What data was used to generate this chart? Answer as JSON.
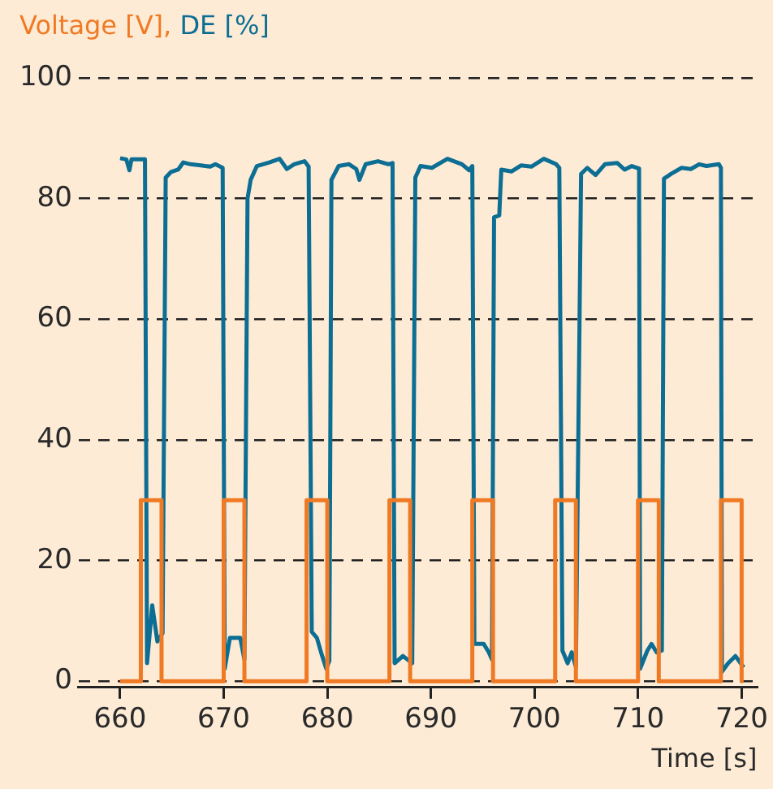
{
  "chart_data": {
    "type": "line",
    "xlabel": "Time [s]",
    "legend": "top left",
    "grid": "y",
    "line_style": "solid",
    "marker": "none",
    "xlim": [
      656,
      721.5
    ],
    "xticks": [
      660,
      670,
      680,
      690,
      700,
      710,
      720
    ],
    "ylim": [
      -1,
      100
    ],
    "yticks": [
      0,
      20,
      40,
      60,
      80,
      100
    ],
    "series": [
      {
        "name": "Voltage [V],",
        "color": "#f07a24",
        "x": [
          660,
          662,
          662,
          664,
          664,
          670,
          670,
          672,
          672,
          678,
          678,
          680,
          680,
          686,
          686,
          688,
          688,
          694,
          694,
          696,
          696,
          702,
          702,
          704,
          704,
          710,
          710,
          712,
          712,
          718,
          718,
          720,
          720
        ],
        "values": [
          0,
          0,
          30,
          30,
          0,
          0,
          30,
          30,
          0,
          0,
          30,
          30,
          0,
          0,
          30,
          30,
          0,
          0,
          30,
          30,
          0,
          0,
          30,
          30,
          0,
          0,
          30,
          30,
          0,
          0,
          30,
          30,
          0
        ]
      },
      {
        "name": "DE [%]",
        "color": "#0d6e94",
        "x": [
          660,
          660.6,
          660.9,
          661.1,
          662.4,
          662.6,
          663.1,
          663.6,
          664.1,
          664.4,
          664.9,
          665.6,
          666.1,
          666.8,
          667.8,
          668.7,
          669.2,
          669.9,
          670.1,
          670.6,
          671.6,
          672.0,
          672.3,
          672.6,
          673.2,
          674.4,
          675.4,
          676.1,
          676.8,
          677.8,
          678.2,
          678.5,
          679.0,
          679.4,
          679.9,
          680.2,
          680.4,
          681.1,
          682.1,
          682.8,
          683.1,
          683.7,
          684.9,
          685.9,
          686.3,
          686.5,
          687.3,
          688.2,
          688.5,
          689.0,
          690.1,
          691.6,
          693.0,
          693.7,
          694.0,
          694.2,
          695.1,
          695.6,
          695.9,
          696.1,
          696.6,
          696.8,
          697.8,
          698.7,
          699.7,
          700.9,
          702.1,
          702.4,
          702.7,
          703.2,
          703.6,
          704.0,
          704.5,
          705.1,
          705.9,
          706.8,
          708.0,
          708.7,
          709.4,
          710.1,
          710.2,
          710.9,
          711.3,
          711.8,
          712.3,
          712.5,
          713.2,
          714.2,
          715.1,
          715.9,
          716.6,
          717.8,
          718.0,
          718.1,
          718.7,
          719.4,
          719.9,
          720.2
        ],
        "values": [
          86.7,
          86.5,
          84.7,
          86.5,
          86.5,
          3.0,
          12.6,
          6.6,
          8.0,
          83.5,
          84.4,
          84.8,
          86.0,
          85.7,
          85.5,
          85.3,
          85.7,
          85.1,
          2.1,
          7.2,
          7.2,
          3.6,
          80.0,
          83.1,
          85.4,
          86.0,
          86.6,
          84.9,
          85.7,
          86.2,
          85.3,
          8.2,
          7.2,
          4.8,
          2.1,
          3.4,
          83.1,
          85.4,
          85.7,
          84.9,
          83.1,
          85.7,
          86.2,
          85.7,
          85.9,
          3.0,
          4.2,
          3.0,
          83.5,
          85.4,
          85.1,
          86.6,
          85.7,
          84.7,
          85.4,
          6.2,
          6.2,
          4.8,
          3.6,
          76.9,
          77.2,
          84.8,
          84.5,
          85.5,
          85.3,
          86.6,
          85.7,
          85.1,
          5.1,
          3.0,
          4.8,
          2.4,
          84.1,
          85.1,
          83.9,
          85.7,
          85.9,
          84.8,
          85.4,
          85.0,
          2.1,
          5.1,
          6.2,
          4.8,
          5.1,
          83.3,
          84.1,
          85.1,
          84.9,
          85.7,
          85.4,
          85.7,
          85.1,
          1.6,
          3.0,
          4.2,
          3.0,
          2.3
        ]
      }
    ]
  }
}
